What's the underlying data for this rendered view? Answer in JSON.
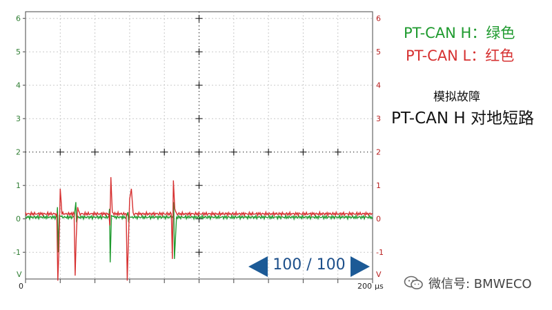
{
  "scope": {
    "unit_left": "V",
    "unit_right": "V",
    "x_start": "0",
    "x_end": "200",
    "x_unit": "μs",
    "left_ticks": [
      "6",
      "5",
      "4",
      "3",
      "2",
      "1",
      "0",
      "-1"
    ],
    "right_ticks": [
      "6",
      "5",
      "4",
      "3",
      "2",
      "1",
      "0",
      "-1"
    ],
    "colors": {
      "can_h": "#1e9a2e",
      "can_l": "#d63030",
      "axis_left": "#2e7d32",
      "axis_right": "#b71c1c"
    }
  },
  "chart_data": {
    "type": "line",
    "xlim": [
      0,
      200
    ],
    "ylim": [
      -1.8,
      6.2
    ],
    "x_unit": "μs",
    "y_unit": "V",
    "grid": true,
    "series": [
      {
        "name": "PT-CAN H",
        "color": "#1e9a2e",
        "x": [
          0,
          18,
          18.4,
          18.8,
          19.5,
          21,
          28,
          29,
          29.4,
          29.8,
          31,
          48,
          48.4,
          48.8,
          49.5,
          51,
          58,
          59,
          59.4,
          59.8,
          61,
          85,
          85.4,
          85.8,
          87,
          200
        ],
        "values": [
          0.05,
          0.05,
          0.35,
          -1.0,
          0.1,
          0.05,
          0.05,
          0.5,
          -0.1,
          0.05,
          0.05,
          0.05,
          0.3,
          -1.3,
          0.1,
          0.05,
          0.05,
          0.2,
          -0.1,
          0.05,
          0.05,
          0.05,
          0.5,
          -1.2,
          0.05,
          0.05
        ]
      },
      {
        "name": "PT-CAN L",
        "color": "#d63030",
        "x": [
          0,
          18,
          18.6,
          19.2,
          20,
          21,
          22,
          28,
          28.6,
          29.2,
          30,
          31,
          48,
          48.6,
          49.2,
          50,
          51,
          58,
          58.6,
          59.2,
          60,
          61,
          62,
          84,
          84.6,
          85.2,
          86,
          87,
          200
        ],
        "values": [
          0.15,
          0.15,
          -1.85,
          -1.0,
          0.9,
          0.15,
          0.15,
          0.15,
          -1.7,
          -0.6,
          0.35,
          0.15,
          0.15,
          -0.2,
          1.25,
          0.2,
          0.15,
          0.15,
          -1.85,
          -0.8,
          0.6,
          0.9,
          0.15,
          0.15,
          -1.2,
          1.15,
          0.3,
          0.15,
          0.15
        ]
      }
    ]
  },
  "legend": {
    "can_h": "PT-CAN H：绿色",
    "can_l": "PT-CAN L：红色"
  },
  "fault": {
    "title": "模拟故障",
    "desc": "PT-CAN H 对地短路"
  },
  "nav": {
    "page": "100 / 100",
    "prev_icon": "arrow-left-icon",
    "next_icon": "arrow-right-icon",
    "color": "#1c5a96"
  },
  "watermark": {
    "text": "微信号: BMWECO",
    "icon": "wechat-icon"
  }
}
